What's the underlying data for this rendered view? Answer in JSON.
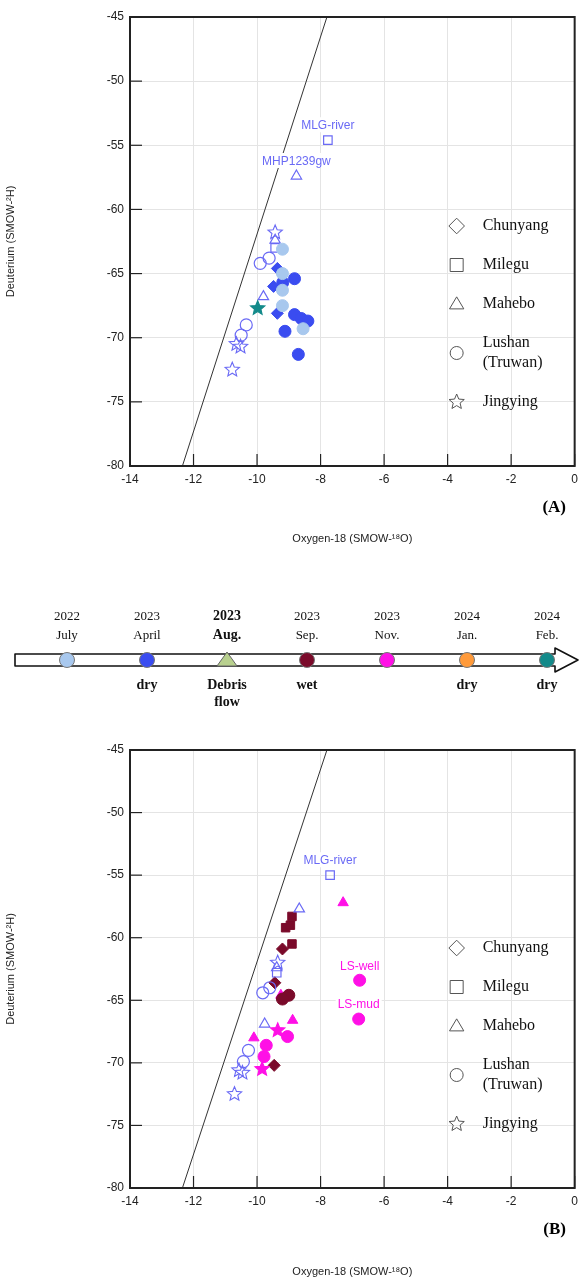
{
  "chart_data": [
    {
      "type": "scatter",
      "title": "(A)",
      "xlabel": "Oxygen-18 (SMOW-¹⁸O)",
      "ylabel": "Deuterium (SMOW-²H)",
      "xlim": [
        -14,
        0
      ],
      "ylim": [
        -80,
        -45
      ],
      "xticks": [
        -14,
        -12,
        -10,
        -8,
        -6,
        -4,
        -2,
        0
      ],
      "yticks": [
        -80,
        -75,
        -70,
        -65,
        -60,
        -55,
        -50,
        -45
      ],
      "grid": true,
      "legend": "bottom right",
      "series": [
        {
          "type": "line",
          "color": "#333333",
          "marker": "none",
          "x": [
            -12.35,
            -7.8
          ],
          "values": [
            -80,
            -45
          ]
        },
        {
          "name": "Chunyang",
          "color": "#555555",
          "marker": "diamond"
        },
        {
          "name": "Milegu",
          "color": "#555555",
          "marker": "square"
        },
        {
          "name": "Mahebo",
          "color": "#555555",
          "marker": "triangle"
        },
        {
          "name": "Lushan (Truwan)",
          "color": "#555555",
          "marker": "circle"
        },
        {
          "name": "Jingying",
          "color": "#555555",
          "marker": "star"
        },
        {
          "color": "#a8c8ee",
          "marker": "circle",
          "x": [
            -9.2,
            -9.2,
            -9.2,
            -8.55,
            -9.2
          ],
          "values": [
            -63.1,
            -66.3,
            -67.5,
            -69.3,
            -65.0
          ]
        },
        {
          "color": "#6a6af5",
          "marker": "star",
          "x": [
            -9.43,
            -10.65,
            -10.52,
            -10.78
          ],
          "values": [
            -61.8,
            -70.5,
            -70.7,
            -72.5
          ]
        },
        {
          "color": "#6a6af5",
          "marker": "triangle",
          "x": [
            -8.76,
            -9.43,
            -9.8
          ],
          "values": [
            -57.4,
            -62.4,
            -66.8
          ]
        },
        {
          "color": "#6a6af5",
          "marker": "square",
          "x": [
            -7.77,
            -9.43
          ],
          "values": [
            -54.6,
            -63.0
          ]
        },
        {
          "color": "#6a6af5",
          "marker": "circle",
          "x": [
            -9.9,
            -9.62,
            -10.34,
            -10.5
          ],
          "values": [
            -64.2,
            -63.8,
            -69.0,
            -69.8
          ]
        },
        {
          "color": "#3a4cf0",
          "marker": "diamond",
          "x": [
            -9.36,
            -9.48,
            -9.36
          ],
          "values": [
            -64.6,
            -66.0,
            -68.1
          ]
        },
        {
          "color": "#3a4cf0",
          "marker": "circle",
          "x": [
            -9.19,
            -8.82,
            -8.82,
            -8.61,
            -8.4,
            -9.12,
            -8.7
          ],
          "values": [
            -65.7,
            -65.4,
            -68.2,
            -68.5,
            -68.7,
            -69.5,
            -71.3
          ]
        },
        {
          "color": "#138a8a",
          "marker": "star",
          "x": [
            -9.98
          ],
          "values": [
            -67.7
          ]
        }
      ],
      "annotations": [
        {
          "text": "MLG-river",
          "x": -7.77,
          "y": -54.6
        },
        {
          "text": "MHP1239gw",
          "x": -8.76,
          "y": -57.4
        }
      ]
    },
    {
      "type": "other",
      "categories": [
        "2022\nJuly",
        "2023\nApril",
        "2023\nAug.",
        "2023\nSep.",
        "2023\nNov.",
        "2024\nJan.",
        "2024\nFeb."
      ],
      "colors": [
        "#a8c8ee",
        "#3a4cf0",
        "#b8d08e",
        "#7a0a2a",
        "#ff10e6",
        "#ff9a3a",
        "#138a8a"
      ],
      "value_labels": [
        null,
        "dry",
        null,
        "wet",
        null,
        "dry",
        "dry"
      ],
      "annotations": [
        {
          "text": "Debris\nflow",
          "x": "2023\nAug."
        }
      ]
    },
    {
      "type": "scatter",
      "title": "(B)",
      "xlabel": "Oxygen-18 (SMOW-¹⁸O)",
      "ylabel": "Deuterium (SMOW-²H)",
      "xlim": [
        -14,
        0
      ],
      "ylim": [
        -80,
        -45
      ],
      "xticks": [
        -14,
        -12,
        -10,
        -8,
        -6,
        -4,
        -2,
        0
      ],
      "yticks": [
        -80,
        -75,
        -70,
        -65,
        -60,
        -55,
        -50,
        -45
      ],
      "grid": true,
      "legend": "bottom right",
      "series": [
        {
          "type": "line",
          "color": "#333333",
          "marker": "none",
          "x": [
            -12.35,
            -7.8
          ],
          "values": [
            -80,
            -45
          ]
        },
        {
          "name": "Chunyang",
          "color": "#555555",
          "marker": "diamond"
        },
        {
          "name": "Milegu",
          "color": "#555555",
          "marker": "square"
        },
        {
          "name": "Mahebo",
          "color": "#555555",
          "marker": "triangle"
        },
        {
          "name": "Lushan (Truwan)",
          "color": "#555555",
          "marker": "circle"
        },
        {
          "name": "Jingying",
          "color": "#555555",
          "marker": "star"
        },
        {
          "color": "#6a6af5",
          "marker": "square",
          "x": [
            -7.7,
            -9.38
          ],
          "values": [
            -55.0,
            -62.8
          ]
        },
        {
          "color": "#6a6af5",
          "marker": "triangle",
          "x": [
            -8.67,
            -9.76,
            -9.38
          ],
          "values": [
            -57.7,
            -66.9,
            -62.4
          ]
        },
        {
          "color": "#6a6af5",
          "marker": "star",
          "x": [
            -9.35,
            -10.57,
            -10.46,
            -10.71
          ],
          "values": [
            -62.0,
            -70.6,
            -70.8,
            -72.5
          ]
        },
        {
          "color": "#6a6af5",
          "marker": "circle",
          "x": [
            -9.82,
            -9.6,
            -10.27,
            -10.43
          ],
          "values": [
            -64.4,
            -64.0,
            -69.0,
            -69.9
          ]
        },
        {
          "color": "#7a0a2a",
          "marker": "square",
          "x": [
            -8.9,
            -9.1,
            -8.95,
            -8.9
          ],
          "values": [
            -58.3,
            -59.2,
            -59.0,
            -60.5
          ]
        },
        {
          "color": "#7a0a2a",
          "marker": "diamond",
          "x": [
            -9.2,
            -9.44,
            -9.46
          ],
          "values": [
            -60.9,
            -63.6,
            -70.2
          ]
        },
        {
          "color": "#7a0a2a",
          "marker": "circle",
          "x": [
            -9.0,
            -9.2
          ],
          "values": [
            -64.6,
            -64.9
          ]
        },
        {
          "color": "#ff10e6",
          "marker": "triangle",
          "x": [
            -7.29,
            -9.25,
            -8.88,
            -10.1
          ],
          "values": [
            -57.2,
            -64.6,
            -66.6,
            -68.0
          ]
        },
        {
          "color": "#ff10e6",
          "marker": "circle",
          "x": [
            -6.77,
            -6.8,
            -9.04,
            -9.71,
            -9.78
          ],
          "values": [
            -63.4,
            -66.5,
            -67.9,
            -68.6,
            -69.5
          ]
        },
        {
          "color": "#ff10e6",
          "marker": "star",
          "x": [
            -9.35,
            -9.84
          ],
          "values": [
            -67.4,
            -70.5
          ]
        }
      ],
      "annotations": [
        {
          "text": "MLG-river",
          "x": -7.7,
          "y": -55.0
        },
        {
          "text": "LS-well",
          "x": -6.77,
          "y": -63.4
        },
        {
          "text": "LS-mud",
          "x": -6.8,
          "y": -66.5
        }
      ]
    }
  ]
}
